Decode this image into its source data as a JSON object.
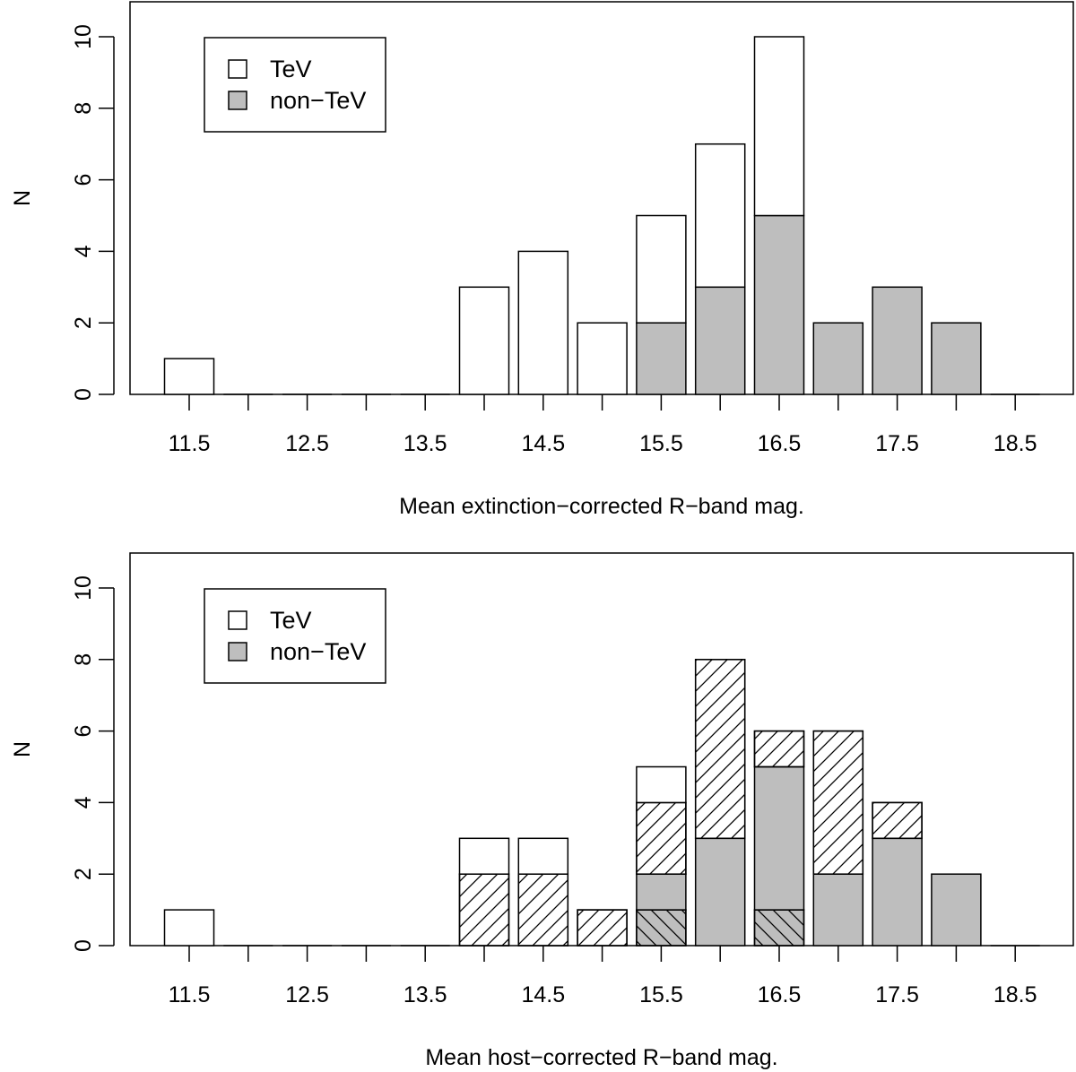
{
  "colors": {
    "tev": "#ffffff",
    "non_tev": "#bebebe",
    "stroke": "#000000"
  },
  "chart_data": [
    {
      "type": "bar",
      "stacked": true,
      "xlabel": "Mean extinction−corrected R−band mag.",
      "ylabel": "N",
      "ylim": [
        0,
        10
      ],
      "yticks": [
        "0",
        "2",
        "4",
        "6",
        "8",
        "10"
      ],
      "xtick_labels": [
        "11.5",
        "12.5",
        "13.5",
        "14.5",
        "15.5",
        "16.5",
        "17.5",
        "18.5"
      ],
      "legend": {
        "position": "top-left",
        "entries": [
          "TeV",
          "non−TeV"
        ]
      },
      "categories": [
        11.5,
        12.0,
        12.5,
        13.0,
        13.5,
        14.0,
        14.5,
        15.0,
        15.5,
        16.0,
        16.5,
        17.0,
        17.5,
        18.0,
        18.5
      ],
      "series": [
        {
          "name": "non−TeV",
          "values": [
            0,
            0,
            0,
            0,
            0,
            0,
            0,
            0,
            2,
            3,
            5,
            2,
            3,
            2,
            0
          ]
        },
        {
          "name": "TeV",
          "values": [
            1,
            0,
            0,
            0,
            0,
            3,
            4,
            2,
            3,
            4,
            5,
            0,
            0,
            0,
            0
          ]
        }
      ]
    },
    {
      "type": "bar",
      "stacked": true,
      "xlabel": "Mean host−corrected R−band mag.",
      "ylabel": "N",
      "ylim": [
        0,
        10
      ],
      "yticks": [
        "0",
        "2",
        "4",
        "6",
        "8",
        "10"
      ],
      "xtick_labels": [
        "11.5",
        "12.5",
        "13.5",
        "14.5",
        "15.5",
        "16.5",
        "17.5",
        "18.5"
      ],
      "legend": {
        "position": "top-left",
        "entries": [
          "TeV",
          "non−TeV"
        ]
      },
      "categories": [
        11.5,
        12.0,
        12.5,
        13.0,
        13.5,
        14.0,
        14.5,
        15.0,
        15.5,
        16.0,
        16.5,
        17.0,
        17.5,
        18.0,
        18.5
      ],
      "series": [
        {
          "name": "non−TeV (back-hatched)",
          "fill": "gray",
          "hatch": "back",
          "values": [
            0,
            0,
            0,
            0,
            0,
            0,
            0,
            0,
            1,
            0,
            1,
            0,
            0,
            0,
            0
          ]
        },
        {
          "name": "non−TeV",
          "fill": "gray",
          "hatch": "none",
          "values": [
            0,
            0,
            0,
            0,
            0,
            0,
            0,
            0,
            1,
            3,
            4,
            2,
            3,
            2,
            0
          ]
        },
        {
          "name": "non−TeV (hatched)",
          "fill": "white",
          "hatch": "forward",
          "values": [
            0,
            0,
            0,
            0,
            0,
            2,
            2,
            1,
            2,
            5,
            1,
            4,
            1,
            0,
            0
          ]
        },
        {
          "name": "TeV",
          "fill": "white",
          "hatch": "none",
          "values": [
            1,
            0,
            0,
            0,
            0,
            1,
            1,
            0,
            1,
            0,
            0,
            0,
            0,
            0,
            0
          ]
        }
      ]
    }
  ]
}
